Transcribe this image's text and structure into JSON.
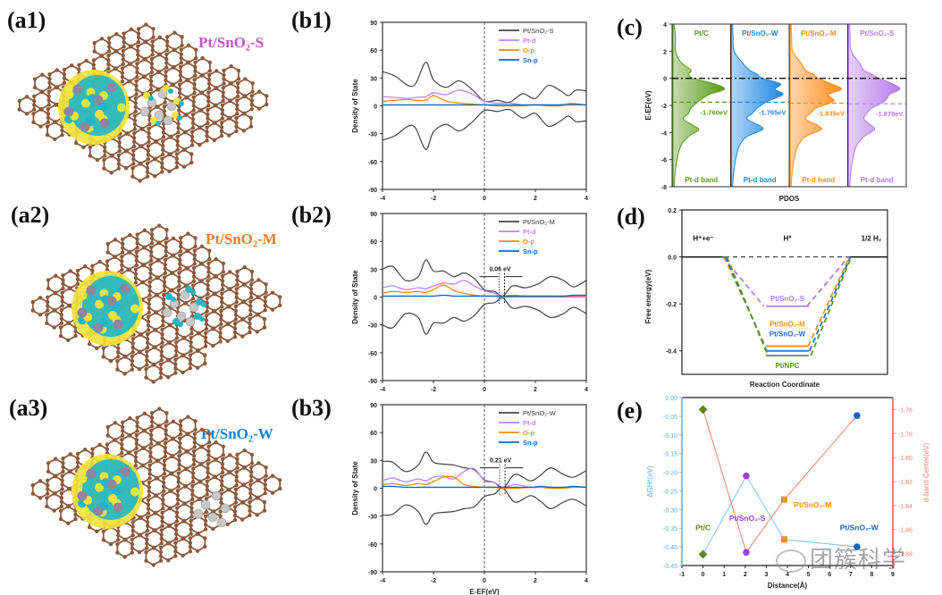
{
  "panels": {
    "a1": {
      "label": "(a1)",
      "title": "Pt/SnO₂-S",
      "color": "#c64fc6"
    },
    "a2": {
      "label": "(a2)",
      "title": "Pt/SnO₂-M",
      "color": "#f07f1e"
    },
    "a3": {
      "label": "(a3)",
      "title": "Pt/SnO₂-W",
      "color": "#1d7fd4"
    },
    "b1": {
      "label": "(b1)"
    },
    "b2": {
      "label": "(b2)"
    },
    "b3": {
      "label": "(b3)"
    },
    "c": {
      "label": "(c)"
    },
    "d": {
      "label": "(d)"
    },
    "e": {
      "label": "(e)"
    }
  },
  "watermark": "团簇科学",
  "chart_data": [
    {
      "id": "b1",
      "type": "line",
      "xlabel": "E-EF(eV)",
      "ylabel": "Density of State",
      "xlim": [
        -4,
        4
      ],
      "ylim": [
        -90,
        90
      ],
      "xticks": [
        -4,
        -2,
        0,
        2,
        4
      ],
      "yticks": [
        -90,
        -60,
        -30,
        0,
        30,
        60,
        90
      ],
      "legend": [
        "Pt/SnO₂-S",
        "Pt-d",
        "O-p",
        "Sn-p"
      ],
      "legend_position": "top-right",
      "x": [
        -4,
        -3.5,
        -3,
        -2.7,
        -2.3,
        -2,
        -1.5,
        -1,
        -0.5,
        0,
        0.5,
        1,
        1.5,
        2,
        2.5,
        3,
        3.3,
        3.6,
        4
      ],
      "series": [
        {
          "name": "Pt/SnO₂-S",
          "color": "#444444",
          "values": [
            37,
            32,
            22,
            24,
            47,
            28,
            20,
            27,
            18,
            5,
            6,
            4,
            13,
            8,
            22,
            16,
            11,
            17,
            16
          ]
        },
        {
          "name": "Pt/SnO₂-S (down)",
          "color": "#444444",
          "values": [
            -37,
            -32,
            -22,
            -24,
            -47,
            -28,
            -20,
            -27,
            -18,
            -5,
            -6,
            -4,
            -13,
            -8,
            -22,
            -16,
            -11,
            -17,
            -16
          ]
        },
        {
          "name": "Pt-d",
          "color": "#c77dff",
          "values": [
            10,
            9,
            8,
            9,
            10,
            14,
            12,
            17,
            13,
            5,
            3,
            3,
            1,
            1,
            1,
            1,
            1,
            1,
            1
          ]
        },
        {
          "name": "O-p",
          "color": "#ff8c00",
          "values": [
            5,
            6,
            7,
            6,
            6,
            11,
            5,
            3,
            2,
            1,
            0,
            0,
            0,
            1,
            0,
            0,
            1,
            1,
            1
          ]
        },
        {
          "name": "Sn-p",
          "color": "#1565c0",
          "values": [
            1,
            1,
            1,
            1,
            1,
            1,
            1,
            1,
            1,
            1,
            1,
            1,
            1,
            1,
            1,
            1,
            2,
            2,
            1
          ]
        }
      ],
      "fermi_line": 0
    },
    {
      "id": "b2",
      "type": "line",
      "xlabel": "E-EF(eV)",
      "ylabel": "Density of State",
      "xlim": [
        -4,
        4
      ],
      "ylim": [
        -90,
        90
      ],
      "xticks": [
        -4,
        -2,
        0,
        2,
        4
      ],
      "yticks": [
        -90,
        -60,
        -30,
        0,
        30,
        60,
        90
      ],
      "legend": [
        "Pt/SnO₂-M",
        "Pt-d",
        "O-p",
        "Sn-p"
      ],
      "legend_position": "top-right",
      "annotation": "0.06 eV",
      "gap_at": 0.72,
      "x": [
        -4,
        -3.6,
        -3.1,
        -2.6,
        -2.3,
        -2,
        -1.6,
        -1.2,
        -0.8,
        -0.4,
        0,
        0.4,
        0.72,
        1.1,
        1.6,
        2.1,
        2.6,
        3.1,
        3.5,
        4
      ],
      "series": [
        {
          "name": "Pt/SnO₂-M",
          "color": "#444444",
          "values": [
            30,
            33,
            18,
            22,
            40,
            28,
            28,
            22,
            26,
            20,
            8,
            6,
            1,
            12,
            10,
            14,
            22,
            18,
            11,
            18
          ]
        },
        {
          "name": "Pt/SnO₂-M (down)",
          "color": "#444444",
          "values": [
            -30,
            -33,
            -18,
            -22,
            -40,
            -28,
            -28,
            -22,
            -26,
            -20,
            -8,
            -6,
            -1,
            -12,
            -10,
            -14,
            -22,
            -18,
            -11,
            -18
          ]
        },
        {
          "name": "Pt-d",
          "color": "#c77dff",
          "values": [
            10,
            12,
            8,
            10,
            9,
            12,
            15,
            14,
            18,
            12,
            7,
            4,
            1,
            2,
            1,
            1,
            1,
            1,
            1,
            1
          ]
        },
        {
          "name": "O-p",
          "color": "#ff8c00",
          "values": [
            4,
            6,
            5,
            6,
            5,
            8,
            13,
            7,
            4,
            2,
            1,
            1,
            0,
            0,
            0,
            0,
            0,
            0,
            0,
            0
          ]
        },
        {
          "name": "Sn-p",
          "color": "#1565c0",
          "values": [
            1,
            1,
            1,
            1,
            1,
            1,
            2,
            1,
            1,
            1,
            1,
            1,
            1,
            1,
            1,
            1,
            1,
            1,
            2,
            2
          ]
        }
      ],
      "fermi_line": 0
    },
    {
      "id": "b3",
      "type": "line",
      "xlabel": "E-EF(eV)",
      "ylabel": "Density of State",
      "xlim": [
        -4,
        4
      ],
      "ylim": [
        -90,
        90
      ],
      "xticks": [
        -4,
        -2,
        0,
        2,
        4
      ],
      "yticks": [
        -90,
        -60,
        -30,
        0,
        30,
        60,
        90
      ],
      "legend": [
        "Pt/SnO₂-W",
        "Pt-d",
        "O-p",
        "Sn-p"
      ],
      "legend_position": "top-right",
      "annotation": "0.21 eV",
      "gap_at": 0.74,
      "x": [
        -4,
        -3.6,
        -3.1,
        -2.6,
        -2.3,
        -2,
        -1.6,
        -1.2,
        -0.8,
        -0.4,
        0,
        0.4,
        0.74,
        1.2,
        1.8,
        2.2,
        2.6,
        3.1,
        3.5,
        4
      ],
      "series": [
        {
          "name": "Pt/SnO₂-W",
          "color": "#444444",
          "values": [
            29,
            28,
            18,
            25,
            39,
            28,
            26,
            25,
            22,
            20,
            9,
            6,
            0,
            15,
            8,
            14,
            22,
            15,
            12,
            19
          ]
        },
        {
          "name": "Pt/SnO₂-W (down)",
          "color": "#444444",
          "values": [
            -29,
            -28,
            -18,
            -25,
            -39,
            -28,
            -26,
            -25,
            -22,
            -20,
            -9,
            -6,
            0,
            -15,
            -8,
            -14,
            -22,
            -15,
            -12,
            -19
          ]
        },
        {
          "name": "Pt-d",
          "color": "#c77dff",
          "values": [
            8,
            11,
            7,
            10,
            8,
            12,
            13,
            10,
            18,
            21,
            8,
            6,
            1,
            4,
            1,
            1,
            1,
            1,
            1,
            1
          ]
        },
        {
          "name": "O-p",
          "color": "#ff8c00",
          "values": [
            4,
            5,
            3,
            5,
            4,
            7,
            12,
            12,
            4,
            2,
            1,
            1,
            0,
            0,
            1,
            1,
            0,
            0,
            1,
            1
          ]
        },
        {
          "name": "Sn-p",
          "color": "#1565c0",
          "values": [
            2,
            2,
            1,
            1,
            1,
            1,
            1,
            1,
            1,
            1,
            1,
            1,
            1,
            1,
            1,
            2,
            1,
            1,
            2,
            1
          ]
        }
      ],
      "fermi_line": 0
    },
    {
      "id": "c",
      "type": "area",
      "xlabel": "PDOS",
      "ylabel": "E-EF(eV)",
      "ylim": [
        -8,
        4
      ],
      "yticks": [
        -8,
        -6,
        -4,
        -2,
        0,
        2,
        4
      ],
      "band_label": "Pt-d band",
      "y": [
        4,
        3,
        2,
        1.2,
        0.6,
        0.3,
        0,
        -0.4,
        -0.8,
        -1.2,
        -1.7,
        -2.2,
        -2.6,
        -3,
        -3.5,
        -3.8,
        -4.3,
        -5,
        -6,
        -7,
        -8
      ],
      "series": [
        {
          "name": "Pt/C",
          "color": "#5a9a1a",
          "d_band_center": -1.76,
          "center_label": "-1.760eV",
          "values": [
            0.02,
            0.05,
            0.05,
            0.15,
            0.35,
            0.3,
            0.4,
            0.8,
            1.0,
            0.7,
            0.5,
            0.35,
            0.3,
            0.2,
            0.4,
            0.5,
            0.3,
            0.15,
            0.08,
            0.04,
            0.02
          ]
        },
        {
          "name": "Pt/SnO₂-W",
          "color": "#1e88e5",
          "d_band_center": -1.765,
          "center_label": "-1.765eV",
          "values": [
            0.02,
            0.03,
            0.05,
            0.2,
            0.35,
            0.5,
            0.6,
            0.95,
            0.85,
            1.0,
            0.7,
            0.5,
            0.4,
            0.3,
            0.55,
            0.6,
            0.3,
            0.15,
            0.08,
            0.04,
            0.02
          ]
        },
        {
          "name": "Pt/SnO₂-M",
          "color": "#ff8c1a",
          "d_band_center": -1.835,
          "center_label": "-1.835eV",
          "values": [
            0.02,
            0.03,
            0.05,
            0.2,
            0.3,
            0.45,
            0.55,
            0.8,
            1.0,
            0.75,
            0.85,
            0.5,
            0.4,
            0.3,
            0.55,
            0.6,
            0.3,
            0.15,
            0.08,
            0.04,
            0.02
          ]
        },
        {
          "name": "Pt/SnO₂-S",
          "color": "#b57bee",
          "d_band_center": -1.879,
          "center_label": "-1.879eV",
          "values": [
            0.02,
            0.03,
            0.05,
            0.2,
            0.3,
            0.45,
            0.6,
            0.85,
            1.0,
            0.8,
            0.7,
            0.45,
            0.35,
            0.3,
            0.45,
            0.5,
            0.3,
            0.15,
            0.08,
            0.04,
            0.02
          ]
        }
      ]
    },
    {
      "id": "d",
      "type": "line",
      "xlabel": "Reaction Coordinate",
      "ylabel": "Free energy(eV)",
      "ylim": [
        -0.5,
        0.2
      ],
      "yticks": [
        -0.4,
        -0.2,
        0.0,
        0.2
      ],
      "states": [
        "H⁺+e⁻",
        "H*",
        "1/2 H₂"
      ],
      "series": [
        {
          "name": "Pt/SnO₂-S",
          "color": "#b57bee",
          "dG_H": -0.21
        },
        {
          "name": "Pt/SnO₂-M",
          "color": "#ff8c1a",
          "dG_H": -0.38
        },
        {
          "name": "Pt/SnO₂-W",
          "color": "#1e6fd0",
          "dG_H": -0.4
        },
        {
          "name": "Pt/NPC",
          "color": "#5a9a1a",
          "dG_H": -0.42
        }
      ]
    },
    {
      "id": "e",
      "type": "scatter",
      "xlabel": "Distance(Å)",
      "ylabel_left": "ΔGH*(eV)",
      "ylabel_right": "d-band Center(eV)",
      "xlim": [
        -1,
        9
      ],
      "xticks": [
        -1,
        0,
        1,
        2,
        3,
        4,
        5,
        6,
        7,
        8,
        9
      ],
      "ylim_left": [
        -0.45,
        0.0
      ],
      "yticks_left": [
        -0.45,
        -0.4,
        -0.35,
        -0.3,
        -0.25,
        -0.2,
        -0.15,
        -0.1,
        -0.05,
        0.0
      ],
      "ylim_right": [
        -1.89,
        -1.75
      ],
      "yticks_right": [
        -1.88,
        -1.86,
        -1.84,
        -1.82,
        -1.8,
        -1.78,
        -1.76
      ],
      "left_color": "#7fc4f0",
      "right_color": "#f08070",
      "series": [
        {
          "name": "ΔGH*",
          "axis": "left",
          "x": [
            0,
            2.05,
            3.85,
            7.3
          ],
          "values": [
            -0.42,
            -0.21,
            -0.38,
            -0.4
          ]
        },
        {
          "name": "d-band center",
          "axis": "right",
          "x": [
            0,
            2.05,
            3.85,
            7.3
          ],
          "values": [
            -1.76,
            -1.879,
            -1.835,
            -1.765
          ]
        }
      ],
      "points": [
        {
          "name": "Pt/C",
          "color": "#5a8a1a",
          "x": 0
        },
        {
          "name": "Pt/SnO₂-S",
          "color": "#9b3fe0",
          "x": 2.05
        },
        {
          "name": "Pt/SnO₂-M",
          "color": "#ff8c1a",
          "x": 3.85
        },
        {
          "name": "Pt/SnO₂-W",
          "color": "#1565c0",
          "x": 7.3
        }
      ]
    }
  ]
}
